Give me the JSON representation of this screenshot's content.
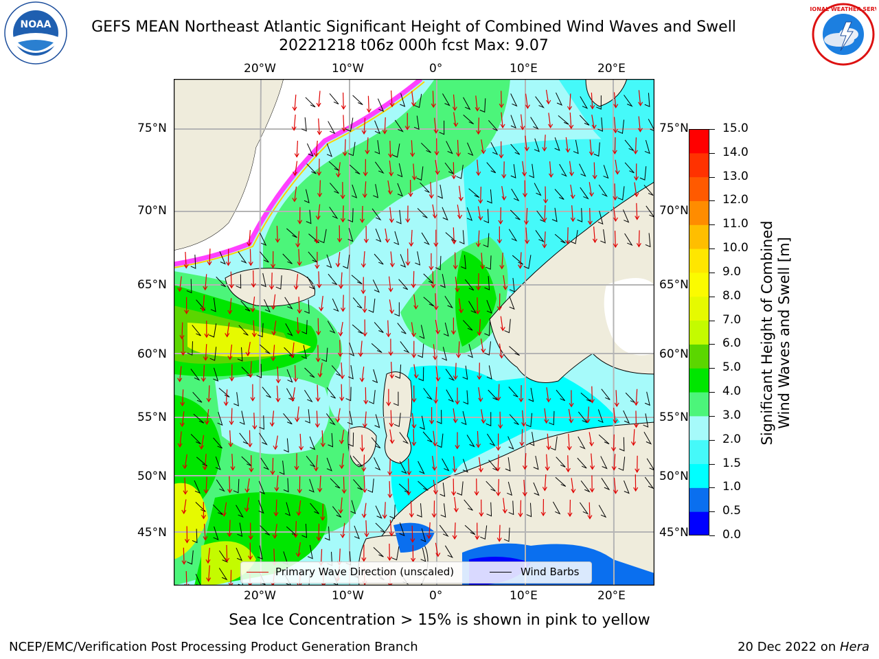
{
  "title": {
    "line1": "GEFS MEAN Northeast Atlantic Significant Height of Combined Wind Waves and Swell",
    "line2": "20221218 t06z 000h fcst   Max: 9.07"
  },
  "logos": {
    "noaa": {
      "text": "NOAA",
      "ring_text": "NATIONAL OCEANIC AND ATMOSPHERIC ADMINISTRATION · U.S. DEPARTMENT OF COMMERCE"
    },
    "nws": {
      "ring_text": "NATIONAL WEATHER SERVICE"
    }
  },
  "map": {
    "lon_labels": [
      "20°W",
      "10°W",
      "0°",
      "10°E",
      "20°E"
    ],
    "lat_labels": [
      "75°N",
      "70°N",
      "65°N",
      "60°N",
      "55°N",
      "50°N",
      "45°N"
    ],
    "colors": {
      "land": "#efecdc",
      "ocean_base": "#a6fafa",
      "grid": "#b4b4b4",
      "arrow": "#e00000",
      "barb": "#000000"
    }
  },
  "legend": {
    "wave_direction": "Primary Wave Direction (unscaled)",
    "wind_barbs": "Wind Barbs"
  },
  "colorbar": {
    "label_line1": "Significant Height of Combined",
    "label_line2": "Wind Waves and Swell [m]",
    "ticks": [
      "0.0",
      "0.5",
      "1.0",
      "1.5",
      "2.0",
      "3.0",
      "4.0",
      "5.0",
      "6.0",
      "7.0",
      "8.0",
      "9.0",
      "10.0",
      "11.0",
      "12.0",
      "13.0",
      "14.0",
      "15.0"
    ],
    "colors": [
      "#0000ff",
      "#0a6fef",
      "#00ffff",
      "#45f9f9",
      "#a6fafa",
      "#4cf57a",
      "#00e600",
      "#5bd600",
      "#c4fb00",
      "#e6fa00",
      "#fbfb00",
      "#ffe600",
      "#ffbe00",
      "#ff8c00",
      "#ff5a00",
      "#ff3200",
      "#ff0000"
    ]
  },
  "notes": {
    "sea_ice": "Sea Ice Concentration > 15% is shown in pink to yellow"
  },
  "footer": {
    "left": "NCEP/EMC/Verification Post Processing Product Generation Branch",
    "right_date": "20 Dec 2022 on ",
    "right_host": "Hera"
  }
}
